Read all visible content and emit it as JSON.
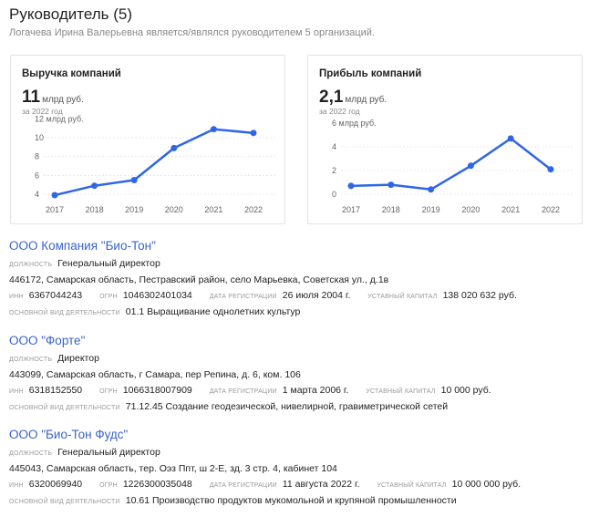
{
  "header": {
    "title": "Руководитель (5)",
    "subtitle": "Логачева Ирина Валерьевна является/являлся руководителем 5 организаций."
  },
  "cards": [
    {
      "title": "Выручка компаний",
      "value": "11",
      "unit": "млрд руб.",
      "year": "за 2022 год"
    },
    {
      "title": "Прибыль компаний",
      "value": "2,1",
      "unit": "млрд руб.",
      "year": "за 2022 год"
    }
  ],
  "chart_data": [
    {
      "type": "line",
      "title": "Выручка компаний",
      "ylabel": "12 млрд руб.",
      "x": [
        "2017",
        "2018",
        "2019",
        "2020",
        "2021",
        "2022"
      ],
      "series": [
        {
          "values": [
            3.9,
            4.9,
            5.5,
            8.9,
            10.9,
            10.5
          ]
        }
      ],
      "yticks": [
        "4",
        "6",
        "8",
        "10"
      ],
      "ylim": [
        3,
        12
      ],
      "grid": true,
      "color": "#2f66e6"
    },
    {
      "type": "line",
      "title": "Прибыль компаний",
      "ylabel": "6 млрд руб.",
      "x": [
        "2017",
        "2018",
        "2019",
        "2020",
        "2021",
        "2022"
      ],
      "series": [
        {
          "values": [
            0.7,
            0.8,
            0.4,
            2.4,
            4.7,
            2.1
          ]
        }
      ],
      "yticks": [
        "0",
        "2",
        "4"
      ],
      "ylim": [
        0,
        6
      ],
      "grid": true,
      "color": "#2f66e6"
    }
  ],
  "labels": {
    "position": "ДОЛЖНОСТЬ",
    "inn": "ИНН",
    "ogrn": "ОГРН",
    "reg_date": "ДАТА РЕГИСТРАЦИИ",
    "capital": "УСТАВНЫЙ КАПИТАЛ",
    "activity": "ОСНОВНОЙ ВИД ДЕЯТЕЛЬНОСТИ"
  },
  "orgs": [
    {
      "name": "ООО Компания \"Био-Тон\"",
      "position": "Генеральный директор",
      "address": "446172, Самарская область, Пестравский район, село Марьевка, Советская ул., д.1в",
      "inn": "6367044243",
      "ogrn": "1046302401034",
      "reg_date": "26 июля 2004 г.",
      "capital": "138 020 632 руб.",
      "activity": "01.1 Выращивание однолетних культур"
    },
    {
      "name": "ООО \"Форте\"",
      "position": "Директор",
      "address": "443099, Самарская область, г Самара, пер Репина, д. 6, ком. 106",
      "inn": "6318152550",
      "ogrn": "1066318007909",
      "reg_date": "1 марта 2006 г.",
      "capital": "10 000 руб.",
      "activity": "71.12.45 Создание геодезической, нивелирной, гравиметрической сетей"
    },
    {
      "name": "ООО \"Био-Тон Фудс\"",
      "position": "Генеральный директор",
      "address": "445043, Самарская область, тер. Оэз Ппт, ш 2-Е, зд. 3 стр. 4, кабинет 104",
      "inn": "6320069940",
      "ogrn": "1226300035048",
      "reg_date": "11 августа 2022 г.",
      "capital": "10 000 000 руб.",
      "activity": "10.61 Производство продуктов мукомольной и крупяной промышленности"
    }
  ]
}
